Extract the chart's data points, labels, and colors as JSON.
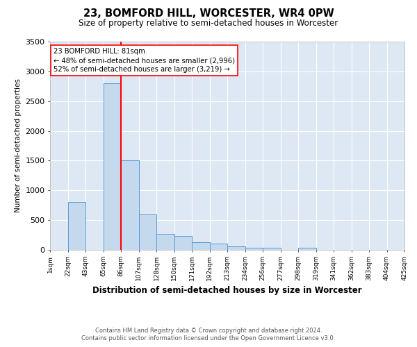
{
  "title": "23, BOMFORD HILL, WORCESTER, WR4 0PW",
  "subtitle": "Size of property relative to semi-detached houses in Worcester",
  "xlabel": "Distribution of semi-detached houses by size in Worcester",
  "ylabel": "Number of semi-detached properties",
  "footer_line1": "Contains HM Land Registry data © Crown copyright and database right 2024.",
  "footer_line2": "Contains public sector information licensed under the Open Government Licence v3.0.",
  "annotation_line1": "23 BOMFORD HILL: 81sqm",
  "annotation_line2": "← 48% of semi-detached houses are smaller (2,996)",
  "annotation_line3": "52% of semi-detached houses are larger (3,219) →",
  "bin_labels": [
    "1sqm",
    "22sqm",
    "43sqm",
    "65sqm",
    "86sqm",
    "107sqm",
    "128sqm",
    "150sqm",
    "171sqm",
    "192sqm",
    "213sqm",
    "234sqm",
    "256sqm",
    "277sqm",
    "298sqm",
    "319sqm",
    "341sqm",
    "362sqm",
    "383sqm",
    "404sqm",
    "425sqm"
  ],
  "bar_heights": [
    0,
    800,
    0,
    2800,
    1500,
    600,
    270,
    230,
    130,
    100,
    60,
    30,
    30,
    0,
    40,
    0,
    0,
    0,
    0,
    0
  ],
  "bar_color": "#c5d9ee",
  "bar_edge_color": "#5b9bd5",
  "red_line_color": "#ff0000",
  "background_color": "#dde8f4",
  "ylim": [
    0,
    3500
  ],
  "yticks": [
    0,
    500,
    1000,
    1500,
    2000,
    2500,
    3000,
    3500
  ],
  "grid_color": "#ffffff"
}
